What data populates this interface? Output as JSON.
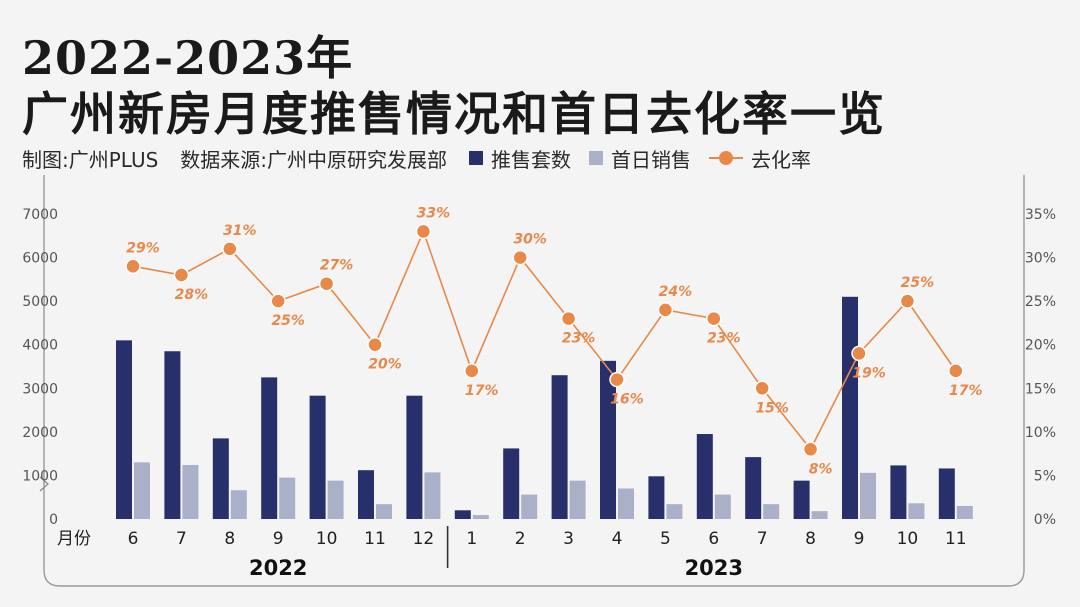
{
  "header": {
    "title_line1": "2022-2023年",
    "title_line2": "广州新房月度推售情况和首日去化率一览",
    "credit": "制图:广州PLUS",
    "source": "数据来源:广州中原研究发展部"
  },
  "colors": {
    "supply": "#27306a",
    "sold": "#a9b0c8",
    "rate": "#e8894a"
  },
  "chart_data": {
    "type": "bar",
    "x_label": "月份",
    "categories": [
      "6",
      "7",
      "8",
      "9",
      "10",
      "11",
      "12",
      "1",
      "2",
      "3",
      "4",
      "5",
      "6",
      "7",
      "8",
      "9",
      "10",
      "11"
    ],
    "year_groups": [
      {
        "label": "2022",
        "start": 0,
        "end": 6
      },
      {
        "label": "2023",
        "start": 7,
        "end": 17
      }
    ],
    "series": [
      {
        "name": "推售套数",
        "type": "bar",
        "axis": "left",
        "values": [
          4100,
          3850,
          1850,
          3250,
          2830,
          1120,
          2830,
          200,
          1620,
          3300,
          3630,
          980,
          1950,
          1420,
          880,
          5100,
          1230,
          1160
        ]
      },
      {
        "name": "首日销售",
        "type": "bar",
        "axis": "left",
        "values": [
          1300,
          1240,
          660,
          950,
          880,
          340,
          1070,
          90,
          560,
          880,
          700,
          340,
          560,
          340,
          180,
          1060,
          360,
          300
        ]
      },
      {
        "name": "去化率",
        "type": "line",
        "axis": "right",
        "values": [
          29,
          28,
          31,
          25,
          27,
          20,
          33,
          17,
          30,
          23,
          16,
          24,
          23,
          15,
          8,
          19,
          25,
          17
        ],
        "labels": [
          "29%",
          "28%",
          "31%",
          "25%",
          "27%",
          "20%",
          "33%",
          "17%",
          "30%",
          "23%",
          "16%",
          "24%",
          "23%",
          "15%",
          "8%",
          "19%",
          "25%",
          "17%"
        ]
      }
    ],
    "y_left": {
      "ticks": [
        "0",
        "1000",
        "2000",
        "3000",
        "4000",
        "5000",
        "6000",
        "7000"
      ],
      "range": [
        0,
        7000
      ]
    },
    "y_right": {
      "ticks": [
        "0%",
        "5%",
        "10%",
        "15%",
        "20%",
        "25%",
        "30%",
        "35%"
      ],
      "range": [
        0,
        35
      ]
    },
    "grid": false,
    "legend": "top"
  }
}
